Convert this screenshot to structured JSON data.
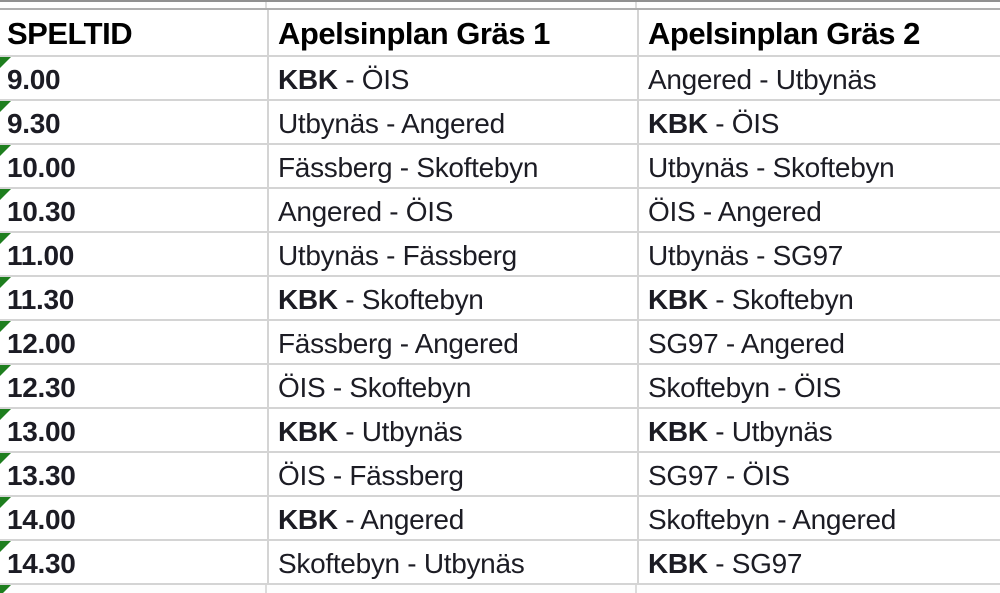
{
  "sheet": {
    "title": "match-schedule-spreadsheet",
    "separator": " - ",
    "columns": [
      {
        "id": "speltid",
        "label": "SPELTID"
      },
      {
        "id": "pitch1",
        "label": "Apelsinplan Gräs 1"
      },
      {
        "id": "pitch2",
        "label": "Apelsinplan Gräs 2"
      }
    ],
    "rows": [
      {
        "time": "9.00",
        "pitch1": {
          "home": "KBK",
          "away": "ÖIS",
          "home_bold": true
        },
        "pitch2": {
          "home": "Angered",
          "away": "Utbynäs",
          "home_bold": false
        }
      },
      {
        "time": "9.30",
        "pitch1": {
          "home": "Utbynäs",
          "away": "Angered",
          "home_bold": false
        },
        "pitch2": {
          "home": "KBK",
          "away": "ÖIS",
          "home_bold": true
        }
      },
      {
        "time": "10.00",
        "pitch1": {
          "home": "Fässberg",
          "away": "Skoftebyn",
          "home_bold": false
        },
        "pitch2": {
          "home": "Utbynäs",
          "away": "Skoftebyn",
          "home_bold": false
        }
      },
      {
        "time": "10.30",
        "pitch1": {
          "home": "Angered",
          "away": "ÖIS",
          "home_bold": false
        },
        "pitch2": {
          "home": "ÖIS",
          "away": "Angered",
          "home_bold": false
        }
      },
      {
        "time": "11.00",
        "pitch1": {
          "home": "Utbynäs",
          "away": "Fässberg",
          "home_bold": false
        },
        "pitch2": {
          "home": "Utbynäs",
          "away": "SG97",
          "home_bold": false
        }
      },
      {
        "time": "11.30",
        "pitch1": {
          "home": "KBK",
          "away": "Skoftebyn",
          "home_bold": true
        },
        "pitch2": {
          "home": "KBK",
          "away": "Skoftebyn",
          "home_bold": true
        }
      },
      {
        "time": "12.00",
        "pitch1": {
          "home": "Fässberg",
          "away": "Angered",
          "home_bold": false
        },
        "pitch2": {
          "home": "SG97",
          "away": "Angered",
          "home_bold": false
        }
      },
      {
        "time": "12.30",
        "pitch1": {
          "home": "ÖIS",
          "away": "Skoftebyn",
          "home_bold": false
        },
        "pitch2": {
          "home": "Skoftebyn",
          "away": "ÖIS",
          "home_bold": false
        }
      },
      {
        "time": "13.00",
        "pitch1": {
          "home": "KBK",
          "away": "Utbynäs",
          "home_bold": true
        },
        "pitch2": {
          "home": "KBK",
          "away": "Utbynäs",
          "home_bold": true
        }
      },
      {
        "time": "13.30",
        "pitch1": {
          "home": "ÖIS",
          "away": "Fässberg",
          "home_bold": false
        },
        "pitch2": {
          "home": "SG97",
          "away": "ÖIS",
          "home_bold": false
        }
      },
      {
        "time": "14.00",
        "pitch1": {
          "home": "KBK",
          "away": "Angered",
          "home_bold": true
        },
        "pitch2": {
          "home": "Skoftebyn",
          "away": "Angered",
          "home_bold": false
        }
      },
      {
        "time": "14.30",
        "pitch1": {
          "home": "Skoftebyn",
          "away": "Utbynäs",
          "home_bold": false
        },
        "pitch2": {
          "home": "KBK",
          "away": "SG97",
          "home_bold": true
        }
      }
    ],
    "colors": {
      "error_indicator_green": "#1e7e1e",
      "gridline": "#d4d4d4",
      "edge_line": "#8f8f8f",
      "text": "#1c1c24"
    }
  }
}
